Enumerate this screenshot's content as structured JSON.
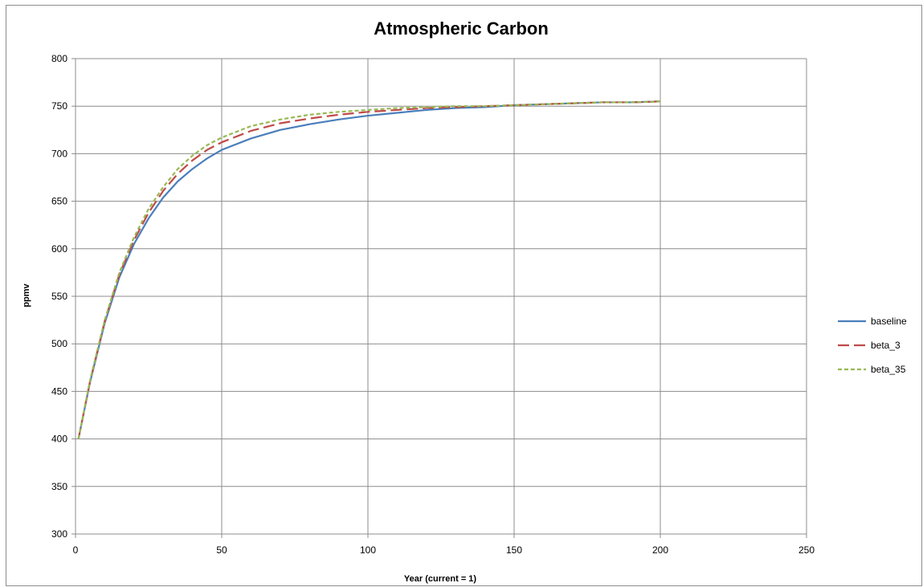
{
  "chart_data": {
    "type": "line",
    "title": "Atmospheric Carbon",
    "xlabel": "Year (current = 1)",
    "ylabel": "ppmv",
    "xlim": [
      0,
      250
    ],
    "ylim": [
      300,
      800
    ],
    "x_ticks": [
      0,
      50,
      100,
      150,
      200,
      250
    ],
    "y_ticks": [
      300,
      350,
      400,
      450,
      500,
      550,
      600,
      650,
      700,
      750,
      800
    ],
    "grid": true,
    "legend_position": "right",
    "x": [
      1,
      5,
      10,
      15,
      20,
      25,
      30,
      35,
      40,
      45,
      50,
      60,
      70,
      80,
      90,
      100,
      110,
      120,
      130,
      140,
      150,
      160,
      170,
      180,
      190,
      200
    ],
    "series": [
      {
        "name": "baseline",
        "color": "#4a7ebb",
        "dash": "solid",
        "values": [
          400,
          460,
          522,
          570,
          605,
          632,
          654,
          671,
          684,
          695,
          704,
          716,
          725,
          731,
          736,
          740,
          743,
          746,
          748,
          749,
          751,
          752,
          753,
          754,
          754,
          755
        ]
      },
      {
        "name": "beta_3",
        "color": "#be4b48",
        "dash": "long-dash",
        "values": [
          400,
          461,
          524,
          573,
          609,
          638,
          661,
          679,
          693,
          704,
          712,
          724,
          732,
          737,
          741,
          744,
          746,
          748,
          749,
          750,
          751,
          752,
          753,
          754,
          754,
          755
        ]
      },
      {
        "name": "beta_35",
        "color": "#98b954",
        "dash": "short-dash",
        "values": [
          400,
          462,
          525,
          575,
          612,
          642,
          665,
          684,
          698,
          709,
          717,
          729,
          736,
          741,
          744,
          746,
          748,
          749,
          750,
          750,
          751,
          752,
          753,
          754,
          754,
          755
        ]
      }
    ]
  }
}
